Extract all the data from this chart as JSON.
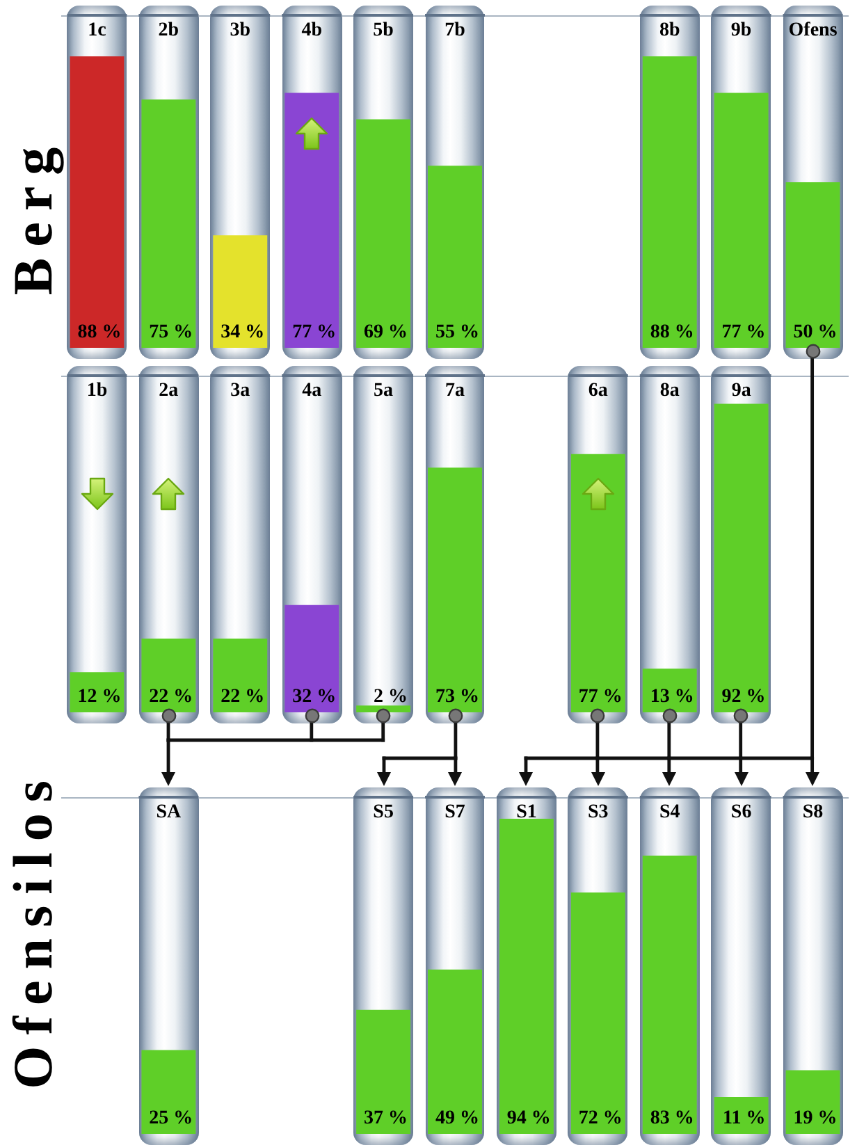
{
  "chart_data": [
    {
      "type": "bar",
      "title": "Berg",
      "categories": [
        "1c",
        "2b",
        "3b",
        "4b",
        "5b",
        "7b",
        null,
        null,
        "8b",
        "9b",
        "Ofens"
      ],
      "values": [
        88,
        75,
        34,
        77,
        69,
        55,
        null,
        null,
        88,
        77,
        50
      ],
      "colors": [
        "#cc2828",
        "#5fcf28",
        "#e4e22c",
        "#8a45d3",
        "#5fcf28",
        "#5fcf28",
        null,
        null,
        "#5fcf28",
        "#5fcf28",
        "#5fcf28"
      ],
      "value_labels": [
        "88 %",
        "75 %",
        "34 %",
        "77 %",
        "69 %",
        "55 %",
        null,
        null,
        "88 %",
        "77 %",
        "50 %"
      ],
      "ylim": [
        0,
        100
      ],
      "tick_labels": "x"
    },
    {
      "type": "bar",
      "categories": [
        "1b",
        "2a",
        "3a",
        "4a",
        "5a",
        "7a",
        null,
        "6a",
        "8a",
        "9a",
        null
      ],
      "values": [
        12,
        22,
        22,
        32,
        2,
        73,
        null,
        77,
        13,
        92,
        null
      ],
      "colors": [
        "#5fcf28",
        "#5fcf28",
        "#5fcf28",
        "#8a45d3",
        "#5fcf28",
        "#5fcf28",
        null,
        "#5fcf28",
        "#5fcf28",
        "#5fcf28",
        null
      ],
      "value_labels": [
        "12 %",
        "22 %",
        "22 %",
        "32 %",
        "2 %",
        "73 %",
        null,
        "77 %",
        "13 %",
        "92 %",
        null
      ],
      "ylim": [
        0,
        100
      ],
      "tick_labels": "x"
    },
    {
      "type": "bar",
      "title": "Ofensilos",
      "categories": [
        null,
        "SA",
        null,
        null,
        "S5",
        "S7",
        "S1",
        "S3",
        "S4",
        "S6",
        "S8"
      ],
      "values": [
        null,
        25,
        null,
        null,
        37,
        49,
        94,
        72,
        83,
        11,
        19
      ],
      "colors": [
        null,
        "#5fcf28",
        null,
        null,
        "#5fcf28",
        "#5fcf28",
        "#5fcf28",
        "#5fcf28",
        "#5fcf28",
        "#5fcf28",
        "#5fcf28"
      ],
      "value_labels": [
        null,
        "25 %",
        null,
        null,
        "37 %",
        "49 %",
        "94 %",
        "72 %",
        "83 %",
        "11 %",
        "19 %"
      ],
      "ylim": [
        0,
        100
      ],
      "tick_labels": "x"
    }
  ]
}
